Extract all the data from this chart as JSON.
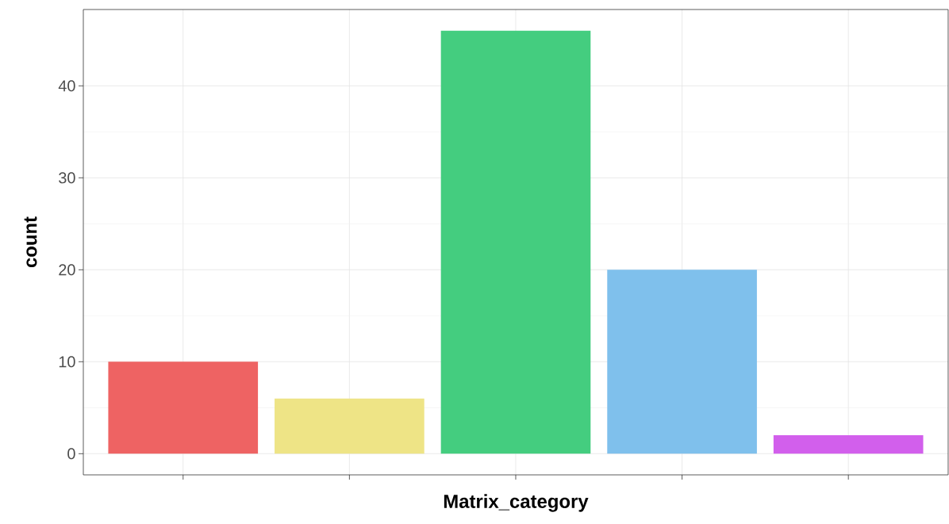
{
  "chart_data": {
    "type": "bar",
    "xlabel": "Matrix_category",
    "ylabel": "count",
    "categories": [
      null,
      null,
      null,
      null,
      null
    ],
    "values": [
      10,
      6,
      46,
      20,
      2
    ],
    "colors": [
      "#ee6363",
      "#eee486",
      "#44cd7f",
      "#7fc0ec",
      "#d25fec"
    ],
    "ylim": [
      -2.3,
      48.3
    ],
    "yticks": [
      0,
      10,
      20,
      30,
      40
    ],
    "grid": true,
    "tick_labels": "y"
  }
}
